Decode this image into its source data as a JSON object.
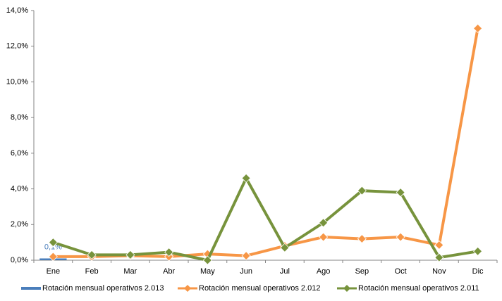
{
  "chart_data": {
    "type": "line",
    "categories": [
      "Ene",
      "Feb",
      "Mar",
      "Abr",
      "May",
      "Jun",
      "Jul",
      "Ago",
      "Sep",
      "Oct",
      "Nov",
      "Dic"
    ],
    "ylim": [
      0,
      14
    ],
    "yticks": [
      {
        "value": 0,
        "label": "0,0%"
      },
      {
        "value": 2,
        "label": "2,0%"
      },
      {
        "value": 4,
        "label": "4,0%"
      },
      {
        "value": 6,
        "label": "6,0%"
      },
      {
        "value": 8,
        "label": "8,0%"
      },
      {
        "value": 10,
        "label": "10,0%"
      },
      {
        "value": 12,
        "label": "12,0%"
      },
      {
        "value": 14,
        "label": "14,0%"
      }
    ],
    "grid": false,
    "legend": "bottom",
    "series": [
      {
        "name": "Rotación mensual operativos 2.013",
        "type": "bar",
        "color": "#4a7ebb",
        "values": [
          0.1,
          null,
          null,
          null,
          null,
          null,
          null,
          null,
          null,
          null,
          null,
          null
        ],
        "value_labels": [
          "0,1%",
          null,
          null,
          null,
          null,
          null,
          null,
          null,
          null,
          null,
          null,
          null
        ]
      },
      {
        "name": "Rotación mensual operativos 2.012",
        "type": "line",
        "color": "#f79646",
        "values": [
          0.2,
          0.2,
          0.25,
          0.2,
          0.35,
          0.25,
          0.8,
          1.3,
          1.2,
          1.3,
          0.85,
          13.0
        ]
      },
      {
        "name": "Rotación mensual operativos 2.011",
        "type": "line",
        "color": "#77933c",
        "values": [
          1.0,
          0.3,
          0.3,
          0.45,
          0.0,
          4.6,
          0.7,
          2.1,
          3.9,
          3.8,
          0.15,
          0.5
        ]
      }
    ]
  }
}
